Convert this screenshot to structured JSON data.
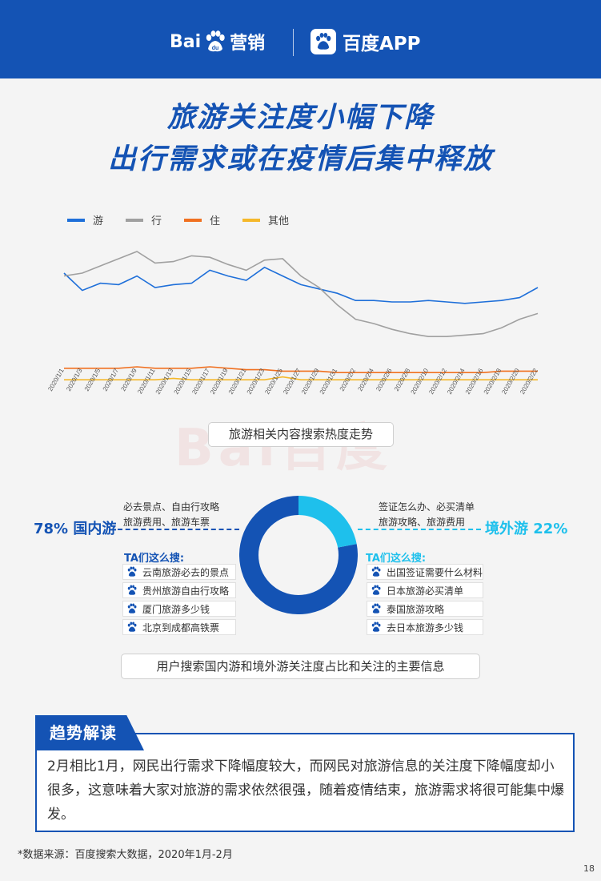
{
  "header": {
    "brand_left_a": "Bai",
    "brand_left_b": "营销",
    "brand_right": "百度APP",
    "paw_text": "du"
  },
  "title": {
    "line1": "旅游关注度小幅下降",
    "line2": "出行需求或在疫情后集中释放"
  },
  "legend": [
    {
      "label": "游",
      "color": "#1e6fd9"
    },
    {
      "label": "行",
      "color": "#a0a0a0"
    },
    {
      "label": "住",
      "color": "#f07020"
    },
    {
      "label": "其他",
      "color": "#f5b82a"
    }
  ],
  "chart_data": {
    "type": "line",
    "title": "旅游相关内容搜索热度走势",
    "x": [
      "2020/1/1",
      "2020/1/3",
      "2020/1/5",
      "2020/1/7",
      "2020/1/9",
      "2020/1/11",
      "2020/1/13",
      "2020/1/15",
      "2020/1/17",
      "2020/1/19",
      "2020/1/21",
      "2020/1/23",
      "2020/1/25",
      "2020/1/27",
      "2020/1/29",
      "2020/1/31",
      "2020/2/2",
      "2020/2/4",
      "2020/2/6",
      "2020/2/8",
      "2020/2/10",
      "2020/2/12",
      "2020/2/14",
      "2020/2/16",
      "2020/2/18",
      "2020/2/20",
      "2020/2/22"
    ],
    "ylim": [
      0,
      100
    ],
    "series": [
      {
        "name": "游",
        "color": "#1e6fd9",
        "values": [
          80,
          68,
          73,
          72,
          78,
          70,
          72,
          73,
          82,
          78,
          75,
          84,
          78,
          72,
          69,
          66,
          61,
          61,
          60,
          60,
          61,
          60,
          59,
          60,
          61,
          63,
          70
        ]
      },
      {
        "name": "行",
        "color": "#a0a0a0",
        "values": [
          78,
          80,
          85,
          90,
          95,
          87,
          88,
          92,
          91,
          86,
          82,
          89,
          90,
          78,
          70,
          58,
          48,
          45,
          41,
          38,
          36,
          36,
          37,
          38,
          42,
          48,
          52
        ]
      },
      {
        "name": "住",
        "color": "#f07020",
        "values": [
          14,
          14,
          14,
          14,
          15,
          14,
          14,
          14,
          15,
          14,
          13,
          13,
          12,
          12,
          12,
          11,
          11,
          11,
          11,
          11,
          11,
          11,
          11,
          11,
          12,
          12,
          12
        ]
      },
      {
        "name": "其他",
        "color": "#f5b82a",
        "values": [
          6,
          6,
          6,
          6,
          6,
          6,
          7,
          6,
          6,
          6,
          6,
          6,
          8,
          6,
          6,
          6,
          6,
          6,
          6,
          6,
          6,
          6,
          6,
          6,
          6,
          6,
          6
        ]
      }
    ]
  },
  "chart_caption": "旅游相关内容搜索热度走势",
  "watermark": "Bai百度",
  "donut": {
    "domestic_pct": 78,
    "overseas_pct": 22,
    "domestic_color": "#1453b4",
    "overseas_color": "#1ec0ec"
  },
  "domestic": {
    "label": "78%  国内游",
    "line1": "必去景点、自由行攻略",
    "line2": "旅游费用、旅游车票",
    "ta_title": "TA们这么搜:",
    "queries": [
      "云南旅游必去的景点",
      "贵州旅游自由行攻略",
      "厦门旅游多少钱",
      "北京到成都高铁票"
    ]
  },
  "overseas": {
    "label": "境外游  22%",
    "line1": "签证怎么办、必买清单",
    "line2": "旅游攻略、旅游费用",
    "ta_title": "TA们这么搜:",
    "queries": [
      "出国签证需要什么材料",
      "日本旅游必买清单",
      "泰国旅游攻略",
      "去日本旅游多少钱"
    ]
  },
  "caption2": "用户搜索国内游和境外游关注度占比和关注的主要信息",
  "insight": {
    "tag": "趋势解读",
    "text": "2月相比1月，网民出行需求下降幅度较大，而网民对旅游信息的关注度下降幅度却小很多，这意味着大家对旅游的需求依然很强，随着疫情结束，旅游需求将很可能集中爆发。"
  },
  "footnote": "*数据来源：百度搜索大数据，2020年1月-2月",
  "page_number": "18"
}
